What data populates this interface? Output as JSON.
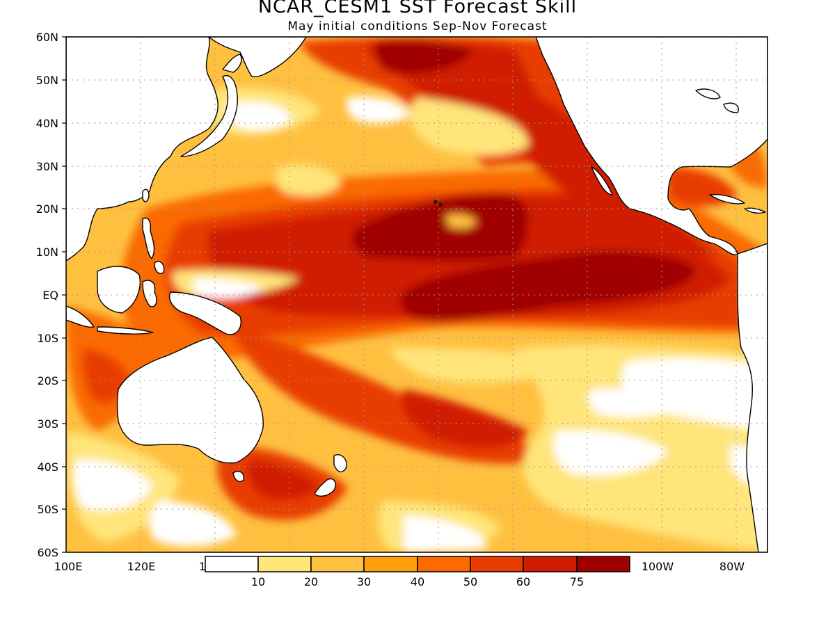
{
  "title": "NCAR_CESM1 SST Forecast Skill",
  "subtitle": "May initial conditions  Sep-Nov Forecast",
  "lat_ticks": [
    "60N",
    "50N",
    "40N",
    "30N",
    "20N",
    "10N",
    "EQ",
    "10S",
    "20S",
    "30S",
    "40S",
    "50S",
    "60S"
  ],
  "lon_ticks": [
    "100E",
    "120E",
    "1",
    "100W",
    "80W"
  ],
  "legend": {
    "labels": [
      "10",
      "20",
      "30",
      "40",
      "50",
      "60",
      "75"
    ],
    "colors": [
      "#ffffff",
      "#ffe57a",
      "#ffc040",
      "#ffa00a",
      "#fa6a00",
      "#e83c00",
      "#d01c00",
      "#a00000"
    ]
  },
  "colors": {
    "land": "#ffffff",
    "coast": "#000000",
    "grid": "#9a9a9a"
  }
}
